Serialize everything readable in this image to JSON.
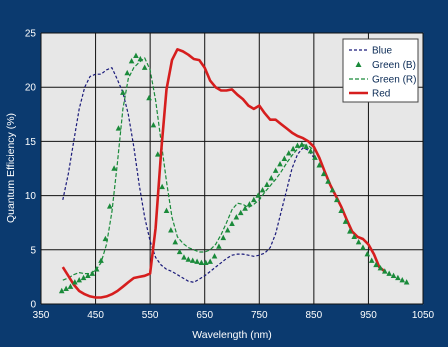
{
  "chart_data": {
    "type": "line",
    "title": "",
    "xlabel": "Wavelength (nm)",
    "ylabel": "Quantum Efficiency (%)",
    "xlim": [
      350,
      1050
    ],
    "ylim": [
      0,
      25
    ],
    "x_ticks": [
      350,
      450,
      550,
      650,
      750,
      850,
      950,
      1050
    ],
    "y_ticks": [
      0,
      5,
      10,
      15,
      20,
      25
    ],
    "x_tick_labels": [
      "350",
      "450",
      "550",
      "650",
      "750",
      "850",
      "950",
      "1050"
    ],
    "y_tick_labels": [
      "0",
      "5",
      "10",
      "15",
      "20",
      "25"
    ],
    "grid": true,
    "legend_position": "top-right",
    "series": [
      {
        "name": "Blue",
        "style": "dashed",
        "color": "#1a1a7a",
        "x": [
          390,
          400,
          410,
          420,
          430,
          440,
          450,
          460,
          470,
          480,
          490,
          500,
          510,
          520,
          530,
          540,
          550,
          560,
          570,
          580,
          590,
          600,
          610,
          620,
          630,
          640,
          650,
          660,
          670,
          680,
          690,
          700,
          710,
          720,
          730,
          740,
          750,
          760,
          770,
          780,
          790,
          800,
          810,
          820,
          830,
          840,
          850
        ],
        "y": [
          9.6,
          12,
          15,
          18,
          20,
          21,
          21.2,
          21.2,
          21.6,
          21.8,
          20.7,
          19.5,
          17.5,
          14.5,
          11,
          8,
          5.8,
          4.3,
          3.6,
          3.2,
          3,
          2.7,
          2.4,
          2.1,
          2,
          2.3,
          2.6,
          3,
          3.4,
          3.8,
          4.2,
          4.5,
          4.6,
          4.6,
          4.5,
          4.4,
          4.5,
          4.7,
          5.2,
          6.5,
          8.5,
          10.5,
          12.5,
          13.8,
          14.4,
          14.2,
          13.5
        ]
      },
      {
        "name": "Green (B)",
        "style": "markers",
        "color": "#1a8a3a",
        "x": [
          388,
          396,
          404,
          412,
          420,
          428,
          436,
          444,
          452,
          460,
          468,
          476,
          484,
          492,
          500,
          508,
          516,
          524,
          532,
          540,
          548,
          556,
          564,
          572,
          580,
          588,
          596,
          604,
          612,
          620,
          628,
          636,
          644,
          652,
          660,
          668,
          676,
          684,
          692,
          700,
          708,
          716,
          724,
          732,
          740,
          748,
          756,
          764,
          772,
          780,
          788,
          796,
          804,
          812,
          820,
          828,
          836,
          844,
          852,
          860,
          868,
          876,
          884,
          892,
          900,
          908,
          916,
          924,
          932,
          940,
          948,
          956,
          964,
          972,
          980,
          988,
          996,
          1004,
          1012,
          1020
        ],
        "y": [
          1.2,
          1.4,
          1.6,
          2.0,
          2.2,
          2.4,
          2.6,
          2.8,
          3.2,
          4.0,
          6.0,
          9.0,
          12.5,
          16.2,
          19.5,
          21.3,
          22.4,
          22.9,
          22.6,
          21.8,
          19.0,
          16.5,
          13.8,
          10.8,
          8.6,
          6.8,
          5.7,
          4.8,
          4.3,
          4.1,
          4.0,
          3.9,
          3.8,
          3.8,
          3.9,
          4.4,
          5.3,
          6.1,
          6.8,
          7.4,
          8.0,
          8.4,
          8.8,
          9.2,
          9.6,
          10.0,
          10.5,
          11.0,
          11.6,
          12.3,
          12.9,
          13.4,
          13.9,
          14.3,
          14.6,
          14.7,
          14.5,
          14.1,
          13.5,
          12.8,
          12.0,
          11.3,
          10.5,
          9.6,
          8.6,
          7.6,
          6.7,
          6.2,
          5.7,
          5.2,
          4.6,
          4.0,
          3.6,
          3.3,
          3.0,
          2.8,
          2.6,
          2.4,
          2.2,
          2.0
        ]
      },
      {
        "name": "Green (R)",
        "style": "dashed",
        "color": "#1a8a3a",
        "x": [
          390,
          400,
          410,
          420,
          430,
          440,
          450,
          460,
          470,
          480,
          490,
          500,
          510,
          520,
          530,
          540,
          550,
          560,
          570,
          580,
          590,
          600,
          610,
          620,
          630,
          640,
          650,
          660,
          670,
          680,
          690,
          700,
          710,
          720,
          730,
          740,
          750,
          760,
          770,
          780,
          790,
          800,
          810,
          820,
          830,
          840,
          850
        ],
        "y": [
          2.2,
          2.4,
          2.7,
          2.9,
          2.8,
          2.8,
          3.1,
          3.8,
          5.5,
          8.5,
          13,
          18,
          20.8,
          21.8,
          22.3,
          22.7,
          21.6,
          18.8,
          15,
          11.3,
          8,
          6.2,
          5.6,
          5.2,
          5.0,
          4.8,
          4.8,
          5.0,
          5.5,
          6.4,
          7.5,
          8.7,
          9.3,
          9.2,
          8.9,
          9.2,
          9.6,
          10.3,
          10.9,
          11.5,
          12.2,
          13.0,
          13.7,
          14.3,
          14.7,
          14.6,
          14.2
        ]
      },
      {
        "name": "Red",
        "style": "solid",
        "color": "#d61e1e",
        "x": [
          390,
          400,
          410,
          420,
          430,
          440,
          450,
          460,
          470,
          480,
          490,
          500,
          510,
          520,
          530,
          540,
          550,
          560,
          570,
          580,
          590,
          600,
          610,
          620,
          630,
          640,
          650,
          660,
          670,
          680,
          690,
          700,
          710,
          720,
          730,
          740,
          750,
          760,
          770,
          780,
          790,
          800,
          810,
          820,
          830,
          840,
          850,
          860,
          870,
          880,
          890,
          900,
          910,
          920,
          930,
          940,
          950,
          960,
          970,
          980
        ],
        "y": [
          3.4,
          2.6,
          1.8,
          1.2,
          0.9,
          0.7,
          0.6,
          0.6,
          0.7,
          0.9,
          1.2,
          1.6,
          2.0,
          2.4,
          2.5,
          2.6,
          2.8,
          7.0,
          14.0,
          19.8,
          22.5,
          23.5,
          23.3,
          23.0,
          22.6,
          22.5,
          21.8,
          20.6,
          20.0,
          19.7,
          19.7,
          19.8,
          19.3,
          18.9,
          18.3,
          18.0,
          18.3,
          17.6,
          17.0,
          17.0,
          16.6,
          16.2,
          15.8,
          15.5,
          15.3,
          15.0,
          14.5,
          13.5,
          12.2,
          11.0,
          10.0,
          9.0,
          7.8,
          6.7,
          6.2,
          6.0,
          5.5,
          4.6,
          3.4,
          3.0
        ]
      }
    ]
  }
}
